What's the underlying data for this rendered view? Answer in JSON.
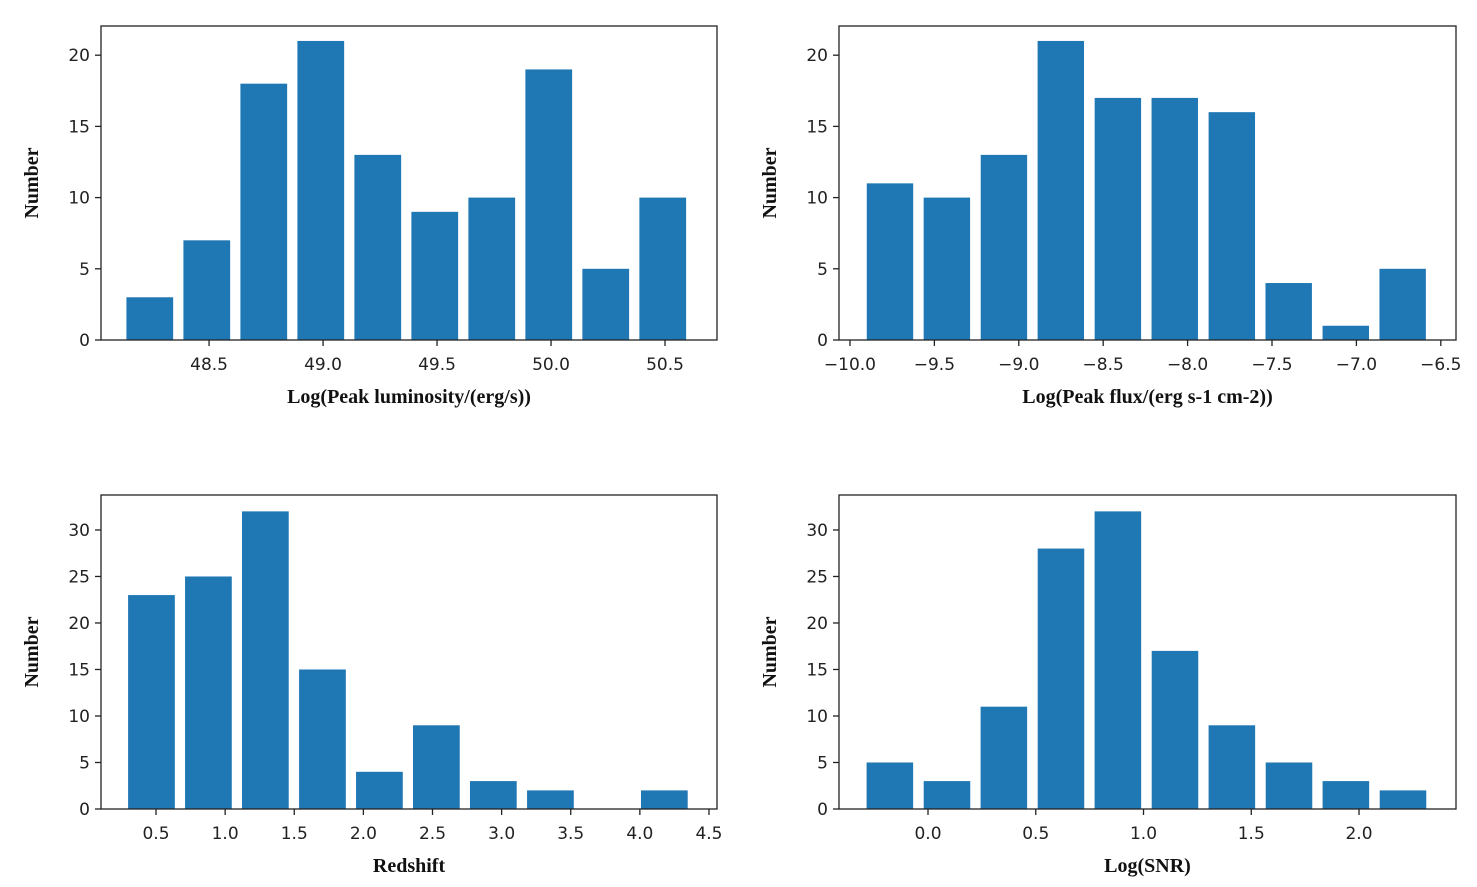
{
  "bar_color": "#1f77b4",
  "chart_data": [
    {
      "type": "bar",
      "title": "",
      "xlabel": "Log(Peak luminosity/(erg/s))",
      "ylabel": "Number",
      "x": [
        48.24,
        48.49,
        48.74,
        48.99,
        49.24,
        49.49,
        49.74,
        49.99,
        50.24,
        50.49
      ],
      "values": [
        3,
        7,
        18,
        21,
        13,
        9,
        10,
        19,
        5,
        10
      ],
      "bar_width": 0.205,
      "xlim": [
        48.026,
        50.728
      ],
      "ylim": [
        0,
        22.05
      ],
      "xticks": [
        48.5,
        49.0,
        49.5,
        50.0,
        50.5
      ],
      "xtick_labels": [
        "48.5",
        "49.0",
        "49.5",
        "50.0",
        "50.5"
      ],
      "yticks": [
        0,
        5,
        10,
        15,
        20
      ],
      "ytick_labels": [
        "0",
        "5",
        "10",
        "15",
        "20"
      ],
      "grid": false
    },
    {
      "type": "bar",
      "title": "",
      "xlabel": "Log(Peak flux/(erg s-1 cm-2))",
      "ylabel": "Number",
      "x": [
        -9.763,
        -9.426,
        -9.088,
        -8.751,
        -8.413,
        -8.076,
        -7.738,
        -7.401,
        -7.063,
        -6.726
      ],
      "values": [
        11,
        10,
        13,
        21,
        17,
        17,
        16,
        4,
        1,
        5
      ],
      "bar_width": 0.275,
      "xlim": [
        -10.065,
        -6.41
      ],
      "ylim": [
        0,
        22.05
      ],
      "xticks": [
        -10.0,
        -9.5,
        -9.0,
        -8.5,
        -8.0,
        -7.5,
        -7.0,
        -6.5
      ],
      "xtick_labels": [
        "−10.0",
        "−9.5",
        "−9.0",
        "−8.5",
        "−8.0",
        "−7.5",
        "−7.0",
        "−6.5"
      ],
      "yticks": [
        0,
        5,
        10,
        15,
        20
      ],
      "ytick_labels": [
        "0",
        "5",
        "10",
        "15",
        "20"
      ],
      "grid": false
    },
    {
      "type": "bar",
      "title": "",
      "xlabel": "Redshift",
      "ylabel": "Number",
      "x": [
        0.467,
        0.879,
        1.291,
        1.704,
        2.116,
        2.528,
        2.94,
        3.353,
        3.765,
        4.177
      ],
      "values": [
        23,
        25,
        32,
        15,
        4,
        9,
        3,
        2,
        0,
        2
      ],
      "bar_width": 0.338,
      "xlim": [
        0.102,
        4.558
      ],
      "ylim": [
        0,
        33.76
      ],
      "xticks": [
        0.5,
        1.0,
        1.5,
        2.0,
        2.5,
        3.0,
        3.5,
        4.0,
        4.5
      ],
      "xtick_labels": [
        "0.5",
        "1.0",
        "1.5",
        "2.0",
        "2.5",
        "3.0",
        "3.5",
        "4.0",
        "4.5"
      ],
      "yticks": [
        0,
        5,
        10,
        15,
        20,
        25,
        30
      ],
      "ytick_labels": [
        "0",
        "5",
        "10",
        "15",
        "20",
        "25",
        "30"
      ],
      "grid": false
    },
    {
      "type": "bar",
      "title": "",
      "xlabel": "Log(SNR)",
      "ylabel": "Number",
      "x": [
        -0.177,
        0.088,
        0.352,
        0.617,
        0.881,
        1.146,
        1.41,
        1.675,
        1.939,
        2.204
      ],
      "values": [
        5,
        3,
        11,
        28,
        32,
        17,
        9,
        5,
        3,
        2
      ],
      "bar_width": 0.216,
      "xlim": [
        -0.413,
        2.45
      ],
      "ylim": [
        0,
        33.76
      ],
      "xticks": [
        0.0,
        0.5,
        1.0,
        1.5,
        2.0
      ],
      "xtick_labels": [
        "0.0",
        "0.5",
        "1.0",
        "1.5",
        "2.0"
      ],
      "yticks": [
        0,
        5,
        10,
        15,
        20,
        25,
        30
      ],
      "ytick_labels": [
        "0",
        "5",
        "10",
        "15",
        "20",
        "25",
        "30"
      ],
      "grid": false
    }
  ]
}
